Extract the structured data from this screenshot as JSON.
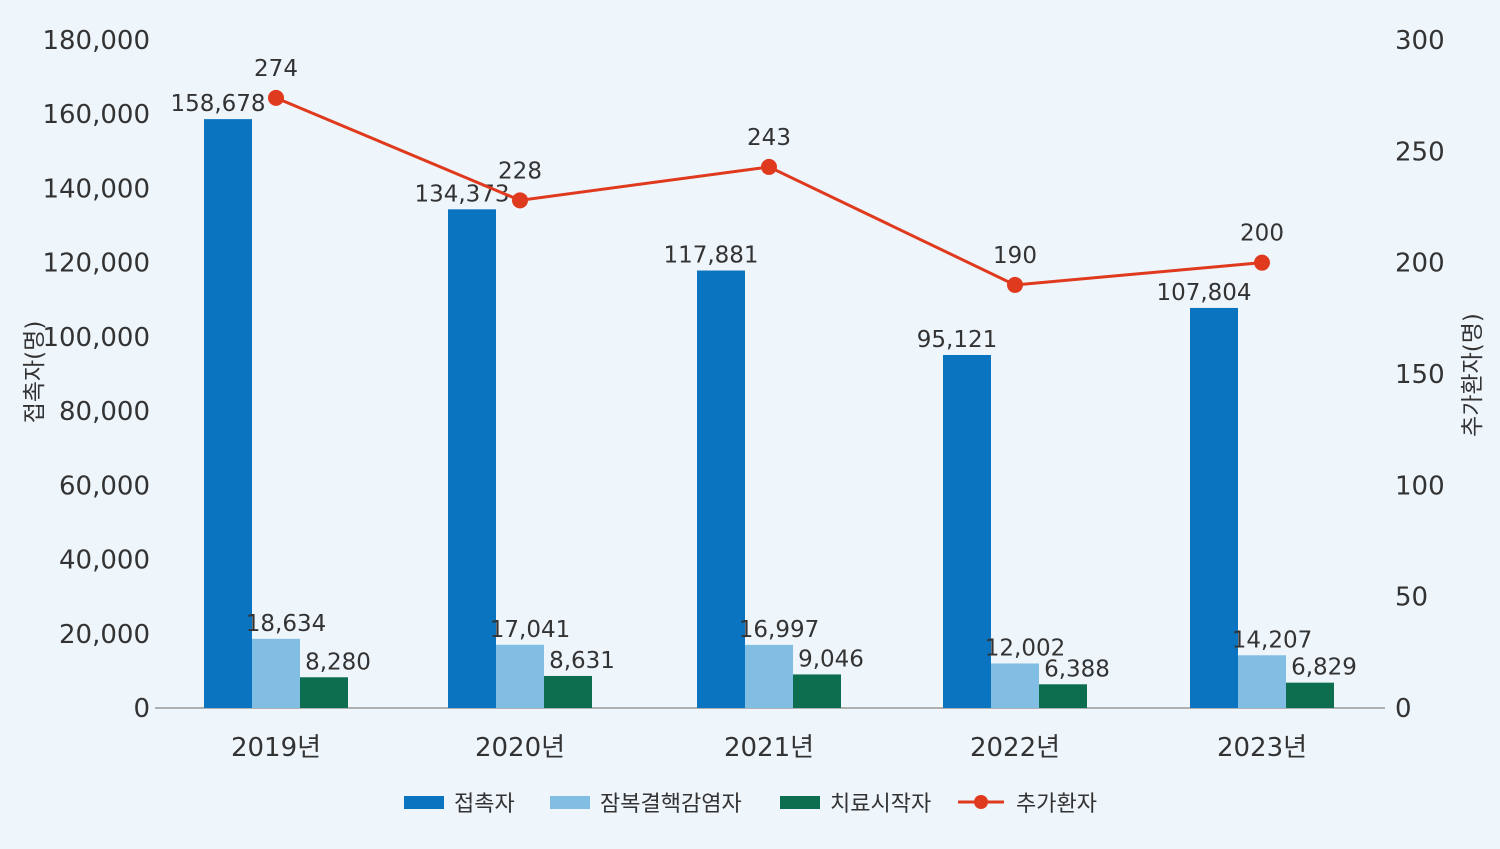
{
  "chart_data": {
    "type": "bar+line",
    "categories": [
      "2019년",
      "2020년",
      "2021년",
      "2022년",
      "2023년"
    ],
    "series": [
      {
        "name": "접촉자",
        "type": "bar",
        "axis": "left",
        "color": "#0a74c0",
        "values": [
          158678,
          134373,
          117881,
          95121,
          107804
        ],
        "labels": [
          "158,678",
          "134,373",
          "117,881",
          "95,121",
          "107,804"
        ]
      },
      {
        "name": "잠복결핵감염자",
        "type": "bar",
        "axis": "left",
        "color": "#82bde3",
        "values": [
          18634,
          17041,
          16997,
          12002,
          14207
        ],
        "labels": [
          "18,634",
          "17,041",
          "16,997",
          "12,002",
          "14,207"
        ]
      },
      {
        "name": "치료시작자",
        "type": "bar",
        "axis": "left",
        "color": "#0d6e4f",
        "values": [
          8280,
          8631,
          9046,
          6388,
          6829
        ],
        "labels": [
          "8,280",
          "8,631",
          "9,046",
          "6,388",
          "6,829"
        ]
      },
      {
        "name": "추가환자",
        "type": "line",
        "axis": "right",
        "color": "#e03a1e",
        "values": [
          274,
          228,
          243,
          190,
          200
        ],
        "labels": [
          "274",
          "228",
          "243",
          "190",
          "200"
        ]
      }
    ],
    "ylabel_left": "접촉자(명)",
    "ylabel_right": "추가환자(명)",
    "ylim_left": [
      0,
      180000
    ],
    "ylim_right": [
      0,
      300
    ],
    "yticks_left": [
      "0",
      "20,000",
      "40,000",
      "60,000",
      "80,000",
      "100,000",
      "120,000",
      "140,000",
      "160,000",
      "180,000"
    ],
    "yticks_right": [
      "0",
      "50",
      "100",
      "150",
      "200",
      "250",
      "300"
    ],
    "grid": false,
    "legend": "bottom"
  }
}
